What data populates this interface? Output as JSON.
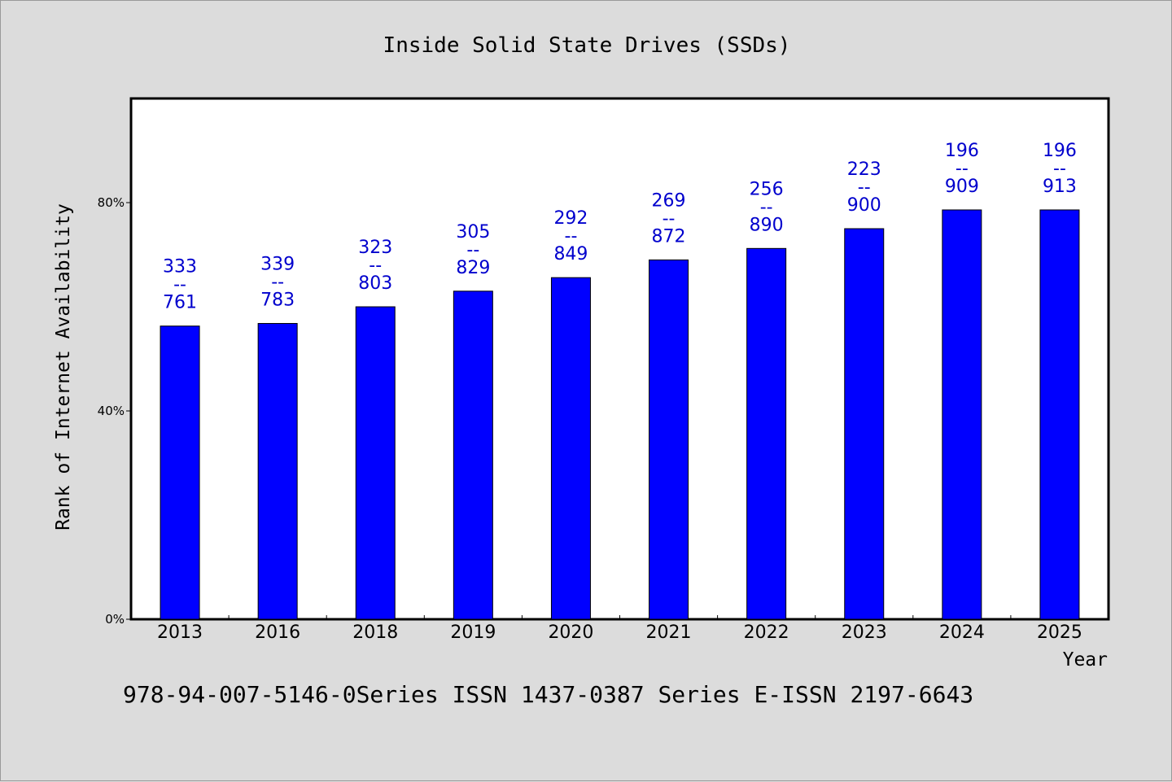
{
  "chart_data": {
    "type": "bar",
    "title": "Inside Solid State Drives (SSDs)",
    "xlabel": "Year",
    "ylabel": "Rank of Internet Availability",
    "categories": [
      "2013",
      "2016",
      "2018",
      "2019",
      "2020",
      "2021",
      "2022",
      "2023",
      "2024",
      "2025"
    ],
    "values": [
      56.3,
      56.8,
      60.0,
      63.0,
      65.6,
      69.0,
      71.2,
      75.0,
      78.6,
      78.6
    ],
    "ylim": [
      0,
      100
    ],
    "yticks": [
      0,
      40,
      80
    ],
    "ytick_labels": [
      "0%",
      "40%",
      "80%"
    ],
    "bar_color": "#0000ff",
    "label_color": "#0000cd",
    "labels": [
      {
        "top": "333",
        "sep": "--",
        "bottom": "761"
      },
      {
        "top": "339",
        "sep": "--",
        "bottom": "783"
      },
      {
        "top": "323",
        "sep": "--",
        "bottom": "803"
      },
      {
        "top": "305",
        "sep": "--",
        "bottom": "829"
      },
      {
        "top": "292",
        "sep": "--",
        "bottom": "849"
      },
      {
        "top": "269",
        "sep": "--",
        "bottom": "872"
      },
      {
        "top": "256",
        "sep": "--",
        "bottom": "890"
      },
      {
        "top": "223",
        "sep": "--",
        "bottom": "900"
      },
      {
        "top": "196",
        "sep": "--",
        "bottom": "909"
      },
      {
        "top": "196",
        "sep": "--",
        "bottom": "913"
      }
    ],
    "grid": false
  },
  "footer": "978-94-007-5146-0Series ISSN 1437-0387 Series E-ISSN 2197-6643"
}
